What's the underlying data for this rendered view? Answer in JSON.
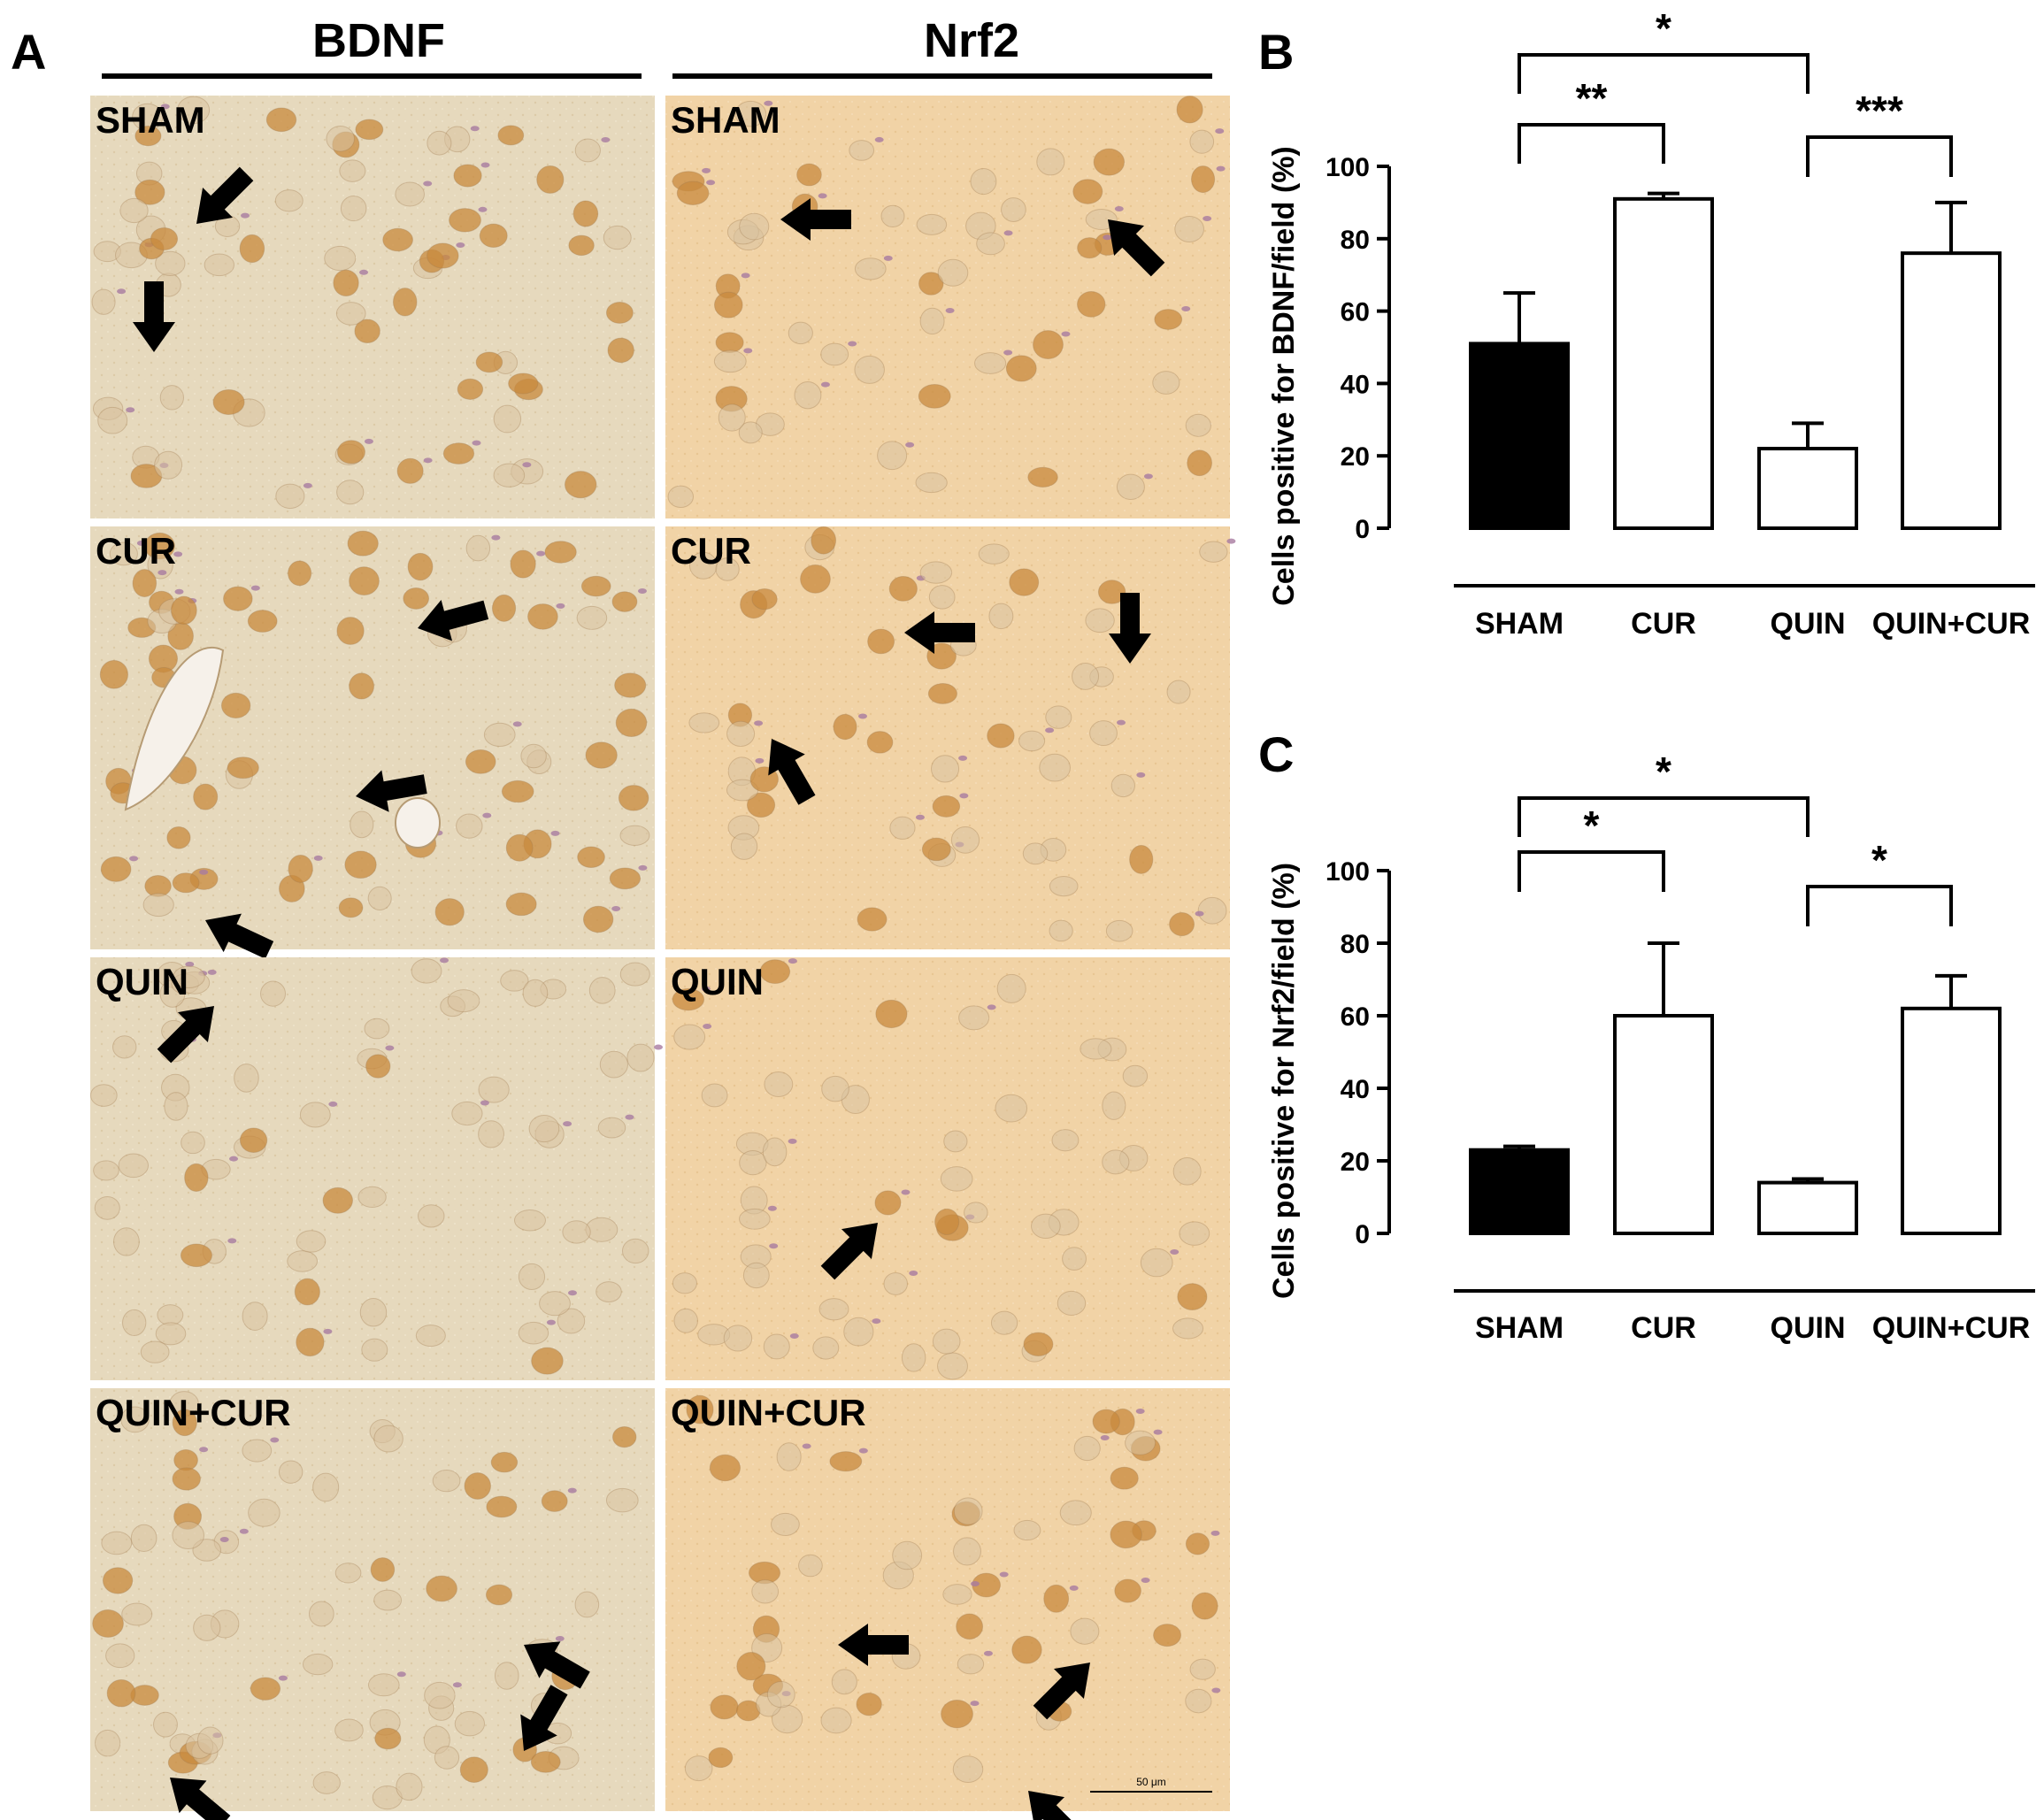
{
  "figure": {
    "panel_a": {
      "letter": "A",
      "columns": [
        {
          "title": "BDNF"
        },
        {
          "title": "Nrf2"
        }
      ],
      "rows": [
        "SHAM",
        "CUR",
        "QUIN",
        "QUIN+CUR"
      ],
      "scale_bar": "50 μm",
      "tissue_colors": {
        "bdnf_background": "#e8dcc0",
        "nrf2_background": "#f0d2a4",
        "stained_nucleus": "#c8893e",
        "counterstain": "#a87aa0"
      }
    }
  },
  "chart_data": [
    {
      "type": "bar",
      "panel": "B",
      "categories": [
        "SHAM",
        "CUR",
        "QUIN",
        "QUIN+CUR"
      ],
      "values": [
        51,
        91,
        22,
        76
      ],
      "errors": [
        14,
        1.5,
        7,
        14
      ],
      "fills": [
        "#000000",
        "#ffffff",
        "#ffffff",
        "#ffffff"
      ],
      "ylabel": "Cells positive for BDNF/field (%)",
      "ylim": [
        0,
        100
      ],
      "yticks": [
        0,
        20,
        40,
        60,
        80,
        100
      ],
      "significance": [
        {
          "from": 0,
          "to": 2,
          "label": "*"
        },
        {
          "from": 0,
          "to": 1,
          "label": "**"
        },
        {
          "from": 2,
          "to": 3,
          "label": "***"
        }
      ]
    },
    {
      "type": "bar",
      "panel": "C",
      "categories": [
        "SHAM",
        "CUR",
        "QUIN",
        "QUIN+CUR"
      ],
      "values": [
        23,
        60,
        14,
        62
      ],
      "errors": [
        1,
        20,
        1,
        9
      ],
      "fills": [
        "#000000",
        "#ffffff",
        "#ffffff",
        "#ffffff"
      ],
      "ylabel": "Cells positive for Nrf2/field (%)",
      "ylim": [
        0,
        100
      ],
      "yticks": [
        0,
        20,
        40,
        60,
        80,
        100
      ],
      "significance": [
        {
          "from": 0,
          "to": 2,
          "label": "*"
        },
        {
          "from": 0,
          "to": 1,
          "label": "*"
        },
        {
          "from": 2,
          "to": 3,
          "label": "*"
        }
      ]
    }
  ]
}
